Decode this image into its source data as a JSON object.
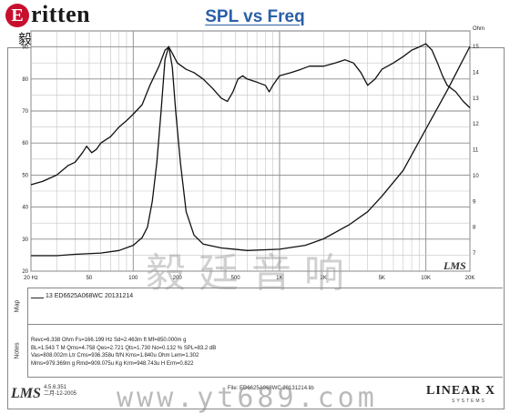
{
  "brand": {
    "logo_letter": "E",
    "name": "ritten",
    "cn_name": "毅廷音响"
  },
  "chart_data": {
    "type": "line",
    "title": "SPL vs Freq",
    "x_scale": "log",
    "xlim": [
      20,
      20000
    ],
    "x_ticks": [
      {
        "v": 20,
        "label": "20 Hz"
      },
      {
        "v": 50,
        "label": "50"
      },
      {
        "v": 100,
        "label": "100"
      },
      {
        "v": 200,
        "label": "200"
      },
      {
        "v": 500,
        "label": "500"
      },
      {
        "v": 1000,
        "label": "1K"
      },
      {
        "v": 2000,
        "label": "2K"
      },
      {
        "v": 5000,
        "label": "5K"
      },
      {
        "v": 10000,
        "label": "10K"
      },
      {
        "v": 20000,
        "label": "20K"
      }
    ],
    "y_left": {
      "ylim": [
        20,
        95
      ],
      "ticks": [
        20,
        30,
        40,
        50,
        60,
        70,
        80,
        90
      ]
    },
    "y_right": {
      "unit": "Ohm",
      "ylim": [
        6.3,
        15.6
      ],
      "ticks": [
        7,
        8,
        9,
        10,
        11,
        12,
        13,
        14,
        15
      ]
    },
    "grid": true,
    "series": [
      {
        "axis": "left",
        "points": [
          [
            20,
            47
          ],
          [
            24,
            48
          ],
          [
            30,
            50
          ],
          [
            36,
            53
          ],
          [
            40,
            54
          ],
          [
            45,
            57
          ],
          [
            48,
            59
          ],
          [
            52,
            57
          ],
          [
            56,
            58
          ],
          [
            60,
            60
          ],
          [
            70,
            62
          ],
          [
            80,
            65
          ],
          [
            90,
            67
          ],
          [
            100,
            69
          ],
          [
            115,
            72
          ],
          [
            130,
            78
          ],
          [
            150,
            84
          ],
          [
            165,
            89
          ],
          [
            175,
            90
          ],
          [
            185,
            88
          ],
          [
            200,
            85
          ],
          [
            230,
            83
          ],
          [
            260,
            82
          ],
          [
            300,
            80
          ],
          [
            350,
            77
          ],
          [
            400,
            74
          ],
          [
            440,
            73
          ],
          [
            480,
            76
          ],
          [
            520,
            80
          ],
          [
            560,
            81
          ],
          [
            600,
            80
          ],
          [
            700,
            79
          ],
          [
            800,
            78
          ],
          [
            850,
            76
          ],
          [
            900,
            78
          ],
          [
            1000,
            81
          ],
          [
            1200,
            82
          ],
          [
            1400,
            83
          ],
          [
            1600,
            84
          ],
          [
            2000,
            84
          ],
          [
            2400,
            85
          ],
          [
            2800,
            86
          ],
          [
            3200,
            85
          ],
          [
            3600,
            82
          ],
          [
            4000,
            78
          ],
          [
            4500,
            80
          ],
          [
            5000,
            83
          ],
          [
            6000,
            85
          ],
          [
            7000,
            87
          ],
          [
            8000,
            89
          ],
          [
            9000,
            90
          ],
          [
            10000,
            91
          ],
          [
            11000,
            89
          ],
          [
            12000,
            85
          ],
          [
            13000,
            81
          ],
          [
            14000,
            78
          ],
          [
            16000,
            76
          ],
          [
            18000,
            73
          ],
          [
            20000,
            71
          ]
        ]
      },
      {
        "axis": "right",
        "points": [
          [
            20,
            6.9
          ],
          [
            30,
            6.9
          ],
          [
            40,
            6.95
          ],
          [
            60,
            7.0
          ],
          [
            80,
            7.1
          ],
          [
            100,
            7.3
          ],
          [
            115,
            7.6
          ],
          [
            125,
            8.0
          ],
          [
            135,
            9.0
          ],
          [
            145,
            10.5
          ],
          [
            155,
            12.5
          ],
          [
            165,
            14.5
          ],
          [
            175,
            15.0
          ],
          [
            185,
            14.2
          ],
          [
            195,
            12.5
          ],
          [
            210,
            10.5
          ],
          [
            230,
            8.6
          ],
          [
            260,
            7.7
          ],
          [
            300,
            7.35
          ],
          [
            400,
            7.2
          ],
          [
            600,
            7.1
          ],
          [
            1000,
            7.15
          ],
          [
            1500,
            7.3
          ],
          [
            2000,
            7.55
          ],
          [
            3000,
            8.1
          ],
          [
            4000,
            8.6
          ],
          [
            5000,
            9.2
          ],
          [
            7000,
            10.2
          ],
          [
            10000,
            11.8
          ],
          [
            14000,
            13.3
          ],
          [
            20000,
            15.0
          ]
        ]
      }
    ],
    "plot_mark": "LMS"
  },
  "watermark_cn": "毅廷音响",
  "watermark_url": "www.yt689.com",
  "side_labels": {
    "map": "Map",
    "notes": "Notes"
  },
  "legend": {
    "text": "13  ED6625A068WC   20131214"
  },
  "notes": [
    "Revc=6.338 Ohm  Fs=166.199 Hz  Sd=2.463m ft Mf=850.000m g",
    "BL=1.543 T M  Qms=4.758  Qes=2.721  Qts=1.730  No=0.132 %  SPL=83.2 dB",
    "Vas=808.002m Ltr  Cms=936.358u ft/N  Kms=1.840u  Ohm  Lem=1.302",
    "Mms=979.369m g  Rmd=909.075u Kg  Krm=948.743u H  Erm=0.822"
  ],
  "footer": {
    "lms": "LMS",
    "version": "4.5.6.351",
    "date": "二月-12-2005",
    "file": "File: ED6625A068WC   20131214.lib",
    "brand": "LINEAR X",
    "brand_sub": "SYSTEMS"
  }
}
